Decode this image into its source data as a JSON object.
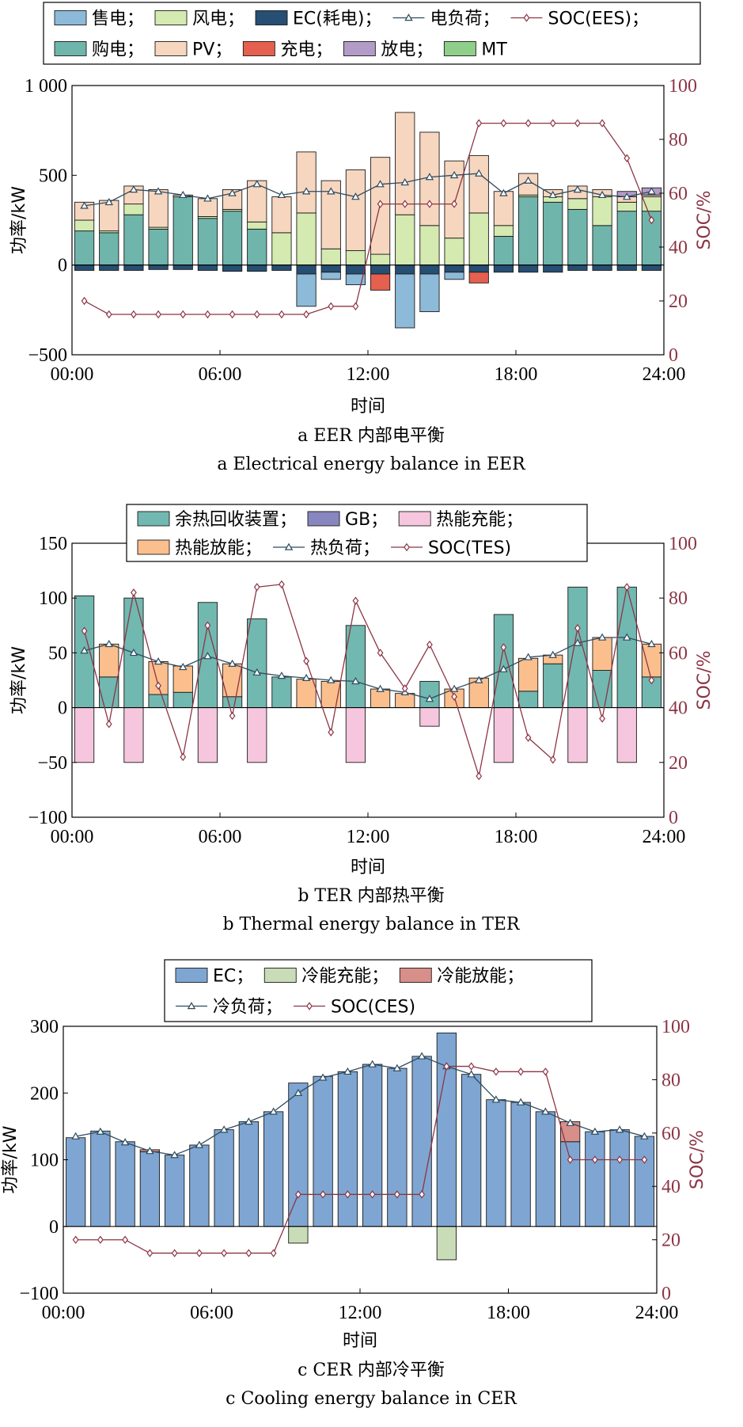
{
  "chart_data": [
    {
      "id": "a",
      "type": "bar",
      "stacked": true,
      "caption_cn": "a  EER 内部电平衡",
      "caption_en": "a  Electrical energy balance in EER",
      "xlabel": "时间",
      "ylabel": "功率/kW",
      "y2label": "SOC/%",
      "xlim": [
        0,
        24
      ],
      "ylim": [
        -500,
        1000
      ],
      "y2lim": [
        0,
        100
      ],
      "xticks": [
        "00:00",
        "06:00",
        "12:00",
        "18:00",
        "24:00"
      ],
      "yticks": [
        "−500",
        "0",
        "500",
        "1 000"
      ],
      "y2ticks": [
        "0",
        "20",
        "40",
        "60",
        "80",
        "100"
      ],
      "x": [
        0.5,
        1.5,
        2.5,
        3.5,
        4.5,
        5.5,
        6.5,
        7.5,
        8.5,
        9.5,
        10.5,
        11.5,
        12.5,
        13.5,
        14.5,
        15.5,
        16.5,
        17.5,
        18.5,
        19.5,
        20.5,
        21.5,
        22.5,
        23.5
      ],
      "legend_rows": [
        [
          "售电；",
          "风电；",
          "EC(耗电)；",
          "电负荷；",
          "SOC(EES)；"
        ],
        [
          "购电；",
          "PV；",
          "充电；",
          "放电；",
          "MT"
        ]
      ],
      "legend_order": [
        "sell",
        "wind",
        "ec",
        "load",
        "soc",
        "buy",
        "pv",
        "charge",
        "discharge",
        "mt"
      ],
      "series": [
        {
          "key": "buy",
          "name": "购电",
          "color": "#6fb5ab",
          "stack": "pos",
          "values": [
            190,
            180,
            280,
            200,
            380,
            260,
            300,
            200,
            0,
            0,
            0,
            0,
            0,
            0,
            0,
            0,
            0,
            160,
            380,
            350,
            310,
            220,
            300,
            300
          ]
        },
        {
          "key": "mt",
          "name": "MT",
          "color": "#8fcf8a",
          "stack": "pos",
          "values": [
            0,
            0,
            0,
            0,
            0,
            0,
            0,
            0,
            0,
            0,
            0,
            0,
            0,
            0,
            0,
            0,
            0,
            0,
            0,
            0,
            0,
            0,
            0,
            0
          ]
        },
        {
          "key": "wind",
          "name": "风电",
          "color": "#d4eab0",
          "stack": "pos",
          "values": [
            60,
            10,
            60,
            10,
            0,
            10,
            10,
            40,
            180,
            290,
            90,
            80,
            60,
            280,
            220,
            150,
            290,
            60,
            10,
            30,
            60,
            160,
            50,
            80
          ]
        },
        {
          "key": "pv",
          "name": "PV",
          "color": "#f7d6bf",
          "stack": "pos",
          "values": [
            100,
            170,
            100,
            210,
            10,
            100,
            110,
            230,
            200,
            340,
            380,
            450,
            540,
            570,
            520,
            430,
            320,
            190,
            120,
            40,
            70,
            40,
            30,
            10
          ]
        },
        {
          "key": "discharge",
          "name": "放电",
          "color": "#b39bc8",
          "stack": "pos",
          "values": [
            0,
            0,
            0,
            0,
            0,
            0,
            0,
            0,
            0,
            0,
            0,
            0,
            0,
            0,
            0,
            0,
            0,
            0,
            0,
            0,
            0,
            0,
            30,
            40
          ]
        },
        {
          "key": "ec",
          "name": "EC(耗电)",
          "color": "#274e73",
          "stack": "neg",
          "values": [
            -30,
            -30,
            -30,
            -25,
            -25,
            -30,
            -35,
            -35,
            -30,
            -50,
            -40,
            -50,
            -50,
            -50,
            -50,
            -40,
            -40,
            -40,
            -40,
            -40,
            -30,
            -30,
            -30,
            -30
          ]
        },
        {
          "key": "sell",
          "name": "售电",
          "color": "#8dbad9",
          "stack": "neg",
          "values": [
            0,
            0,
            0,
            0,
            0,
            0,
            0,
            0,
            0,
            -180,
            -40,
            -60,
            0,
            -300,
            -210,
            -40,
            0,
            0,
            0,
            0,
            0,
            0,
            0,
            0
          ]
        },
        {
          "key": "charge",
          "name": "充电",
          "color": "#e5604f",
          "stack": "neg",
          "values": [
            0,
            0,
            0,
            0,
            0,
            0,
            0,
            0,
            0,
            0,
            0,
            0,
            -90,
            0,
            0,
            0,
            -60,
            0,
            0,
            0,
            0,
            0,
            0,
            0
          ]
        },
        {
          "key": "load",
          "name": "电负荷",
          "color": "#2e4b5e",
          "marker": "triangle",
          "axis": "left",
          "values": [
            330,
            350,
            420,
            410,
            390,
            370,
            400,
            450,
            390,
            410,
            410,
            380,
            450,
            460,
            490,
            500,
            510,
            400,
            470,
            390,
            420,
            390,
            380,
            410
          ]
        },
        {
          "key": "soc",
          "name": "SOC(EES)",
          "color": "#8c3545",
          "marker": "diamond",
          "axis": "right",
          "values": [
            20,
            15,
            15,
            15,
            15,
            15,
            15,
            15,
            15,
            15,
            18,
            18,
            56,
            56,
            56,
            56,
            86,
            86,
            86,
            86,
            86,
            86,
            73,
            50
          ]
        }
      ]
    },
    {
      "id": "b",
      "type": "bar",
      "stacked": true,
      "caption_cn": "b  TER 内部热平衡",
      "caption_en": "b  Thermal energy balance in TER",
      "xlabel": "时间",
      "ylabel": "功率/kW",
      "y2label": "SOC/%",
      "xlim": [
        0,
        24
      ],
      "ylim": [
        -100,
        150
      ],
      "y2lim": [
        0,
        100
      ],
      "xticks": [
        "00:00",
        "06:00",
        "12:00",
        "18:00",
        "24:00"
      ],
      "yticks": [
        "−100",
        "−50",
        "0",
        "50",
        "100",
        "150"
      ],
      "y2ticks": [
        "0",
        "20",
        "40",
        "60",
        "80",
        "100"
      ],
      "x": [
        0.5,
        1.5,
        2.5,
        3.5,
        4.5,
        5.5,
        6.5,
        7.5,
        8.5,
        9.5,
        10.5,
        11.5,
        12.5,
        13.5,
        14.5,
        15.5,
        16.5,
        17.5,
        18.5,
        19.5,
        20.5,
        21.5,
        22.5,
        23.5
      ],
      "legend_rows": [
        [
          "余热回收装置；",
          "GB；",
          "热能充能；"
        ],
        [
          "热能放能；",
          "热负荷；",
          "SOC(TES)"
        ]
      ],
      "legend_order": [
        "whr",
        "gb",
        "tcharge",
        "tdischarge",
        "load",
        "soc"
      ],
      "series": [
        {
          "key": "whr",
          "name": "余热回收装置",
          "color": "#71b8b0",
          "stack": "pos",
          "values": [
            102,
            28,
            100,
            12,
            14,
            96,
            10,
            81,
            28,
            0,
            0,
            75,
            0,
            0,
            24,
            0,
            0,
            85,
            15,
            40,
            110,
            34,
            110,
            28
          ]
        },
        {
          "key": "gb",
          "name": "GB",
          "color": "#8886be",
          "stack": "pos",
          "values": [
            0,
            0,
            0,
            0,
            0,
            0,
            0,
            0,
            0,
            0,
            0,
            0,
            0,
            0,
            0,
            0,
            0,
            0,
            0,
            0,
            0,
            0,
            0,
            0
          ]
        },
        {
          "key": "tdischarge",
          "name": "热能放能",
          "color": "#fbbf8e",
          "stack": "pos",
          "values": [
            0,
            30,
            0,
            30,
            24,
            0,
            30,
            0,
            0,
            26,
            24,
            0,
            17,
            13,
            0,
            17,
            27,
            0,
            30,
            8,
            0,
            30,
            0,
            30
          ]
        },
        {
          "key": "tcharge",
          "name": "热能充能",
          "color": "#f5c6dd",
          "stack": "neg",
          "values": [
            -50,
            0,
            -50,
            0,
            0,
            -50,
            0,
            -50,
            0,
            0,
            0,
            -50,
            0,
            0,
            -17,
            0,
            0,
            -50,
            0,
            0,
            -50,
            0,
            -50,
            0
          ]
        },
        {
          "key": "load",
          "name": "热负荷",
          "color": "#2e4b5e",
          "marker": "triangle",
          "axis": "left",
          "values": [
            52,
            58,
            50,
            42,
            37,
            47,
            40,
            32,
            29,
            27,
            25,
            24,
            17,
            14,
            8,
            17,
            25,
            35,
            46,
            48,
            59,
            64,
            64,
            58
          ]
        },
        {
          "key": "soc",
          "name": "SOC(TES)",
          "color": "#8c3545",
          "marker": "diamond",
          "axis": "right",
          "values": [
            68,
            34,
            82,
            48,
            22,
            70,
            37,
            84,
            85,
            57,
            31,
            79,
            60,
            47,
            63,
            44,
            15,
            62,
            29,
            21,
            69,
            36,
            84,
            50
          ]
        }
      ]
    },
    {
      "id": "c",
      "type": "bar",
      "stacked": true,
      "caption_cn": "c  CER 内部冷平衡",
      "caption_en": "c  Cooling energy balance in CER",
      "xlabel": "时间",
      "ylabel": "功率/kW",
      "y2label": "SOC/%",
      "xlim": [
        0,
        24
      ],
      "ylim": [
        -100,
        300
      ],
      "y2lim": [
        0,
        100
      ],
      "xticks": [
        "00:00",
        "06:00",
        "12:00",
        "18:00",
        "24:00"
      ],
      "yticks": [
        "−100",
        "0",
        "100",
        "200",
        "300"
      ],
      "y2ticks": [
        "0",
        "20",
        "40",
        "60",
        "80",
        "100"
      ],
      "x": [
        0.5,
        1.5,
        2.5,
        3.5,
        4.5,
        5.5,
        6.5,
        7.5,
        8.5,
        9.5,
        10.5,
        11.5,
        12.5,
        13.5,
        14.5,
        15.5,
        16.5,
        17.5,
        18.5,
        19.5,
        20.5,
        21.5,
        22.5,
        23.5
      ],
      "legend_rows": [
        [
          "EC；",
          "冷能充能；",
          "冷能放能；"
        ],
        [
          "冷负荷；",
          "SOC(CES)"
        ]
      ],
      "legend_order": [
        "ec",
        "ccharge",
        "cdischarge",
        "load",
        "soc"
      ],
      "series": [
        {
          "key": "ec",
          "name": "EC",
          "color": "#7fa6d2",
          "stack": "pos",
          "values": [
            133,
            143,
            127,
            112,
            107,
            122,
            145,
            157,
            172,
            215,
            225,
            232,
            243,
            237,
            255,
            290,
            228,
            190,
            186,
            172,
            127,
            142,
            145,
            135
          ]
        },
        {
          "key": "cdischarge",
          "name": "冷能放能",
          "color": "#d88f8a",
          "stack": "pos",
          "values": [
            0,
            0,
            0,
            3,
            0,
            0,
            0,
            0,
            0,
            0,
            0,
            0,
            0,
            0,
            0,
            0,
            0,
            0,
            0,
            0,
            30,
            0,
            0,
            0
          ]
        },
        {
          "key": "ccharge",
          "name": "冷能充能",
          "color": "#c9dcb8",
          "stack": "neg",
          "values": [
            0,
            0,
            0,
            0,
            0,
            0,
            0,
            0,
            0,
            -25,
            0,
            0,
            0,
            0,
            0,
            -50,
            0,
            0,
            0,
            0,
            0,
            0,
            0,
            0
          ]
        },
        {
          "key": "load",
          "name": "冷负荷",
          "color": "#2e4b5e",
          "marker": "triangle",
          "axis": "left",
          "values": [
            135,
            142,
            126,
            113,
            107,
            122,
            145,
            157,
            172,
            200,
            223,
            232,
            243,
            237,
            255,
            240,
            228,
            190,
            186,
            172,
            155,
            142,
            145,
            135
          ]
        },
        {
          "key": "soc",
          "name": "SOC(CES)",
          "color": "#8c3545",
          "marker": "diamond",
          "axis": "right",
          "values": [
            20,
            20,
            20,
            15,
            15,
            15,
            15,
            15,
            15,
            37,
            37,
            37,
            37,
            37,
            37,
            85,
            85,
            83,
            83,
            83,
            50,
            50,
            50,
            50
          ]
        }
      ]
    }
  ]
}
